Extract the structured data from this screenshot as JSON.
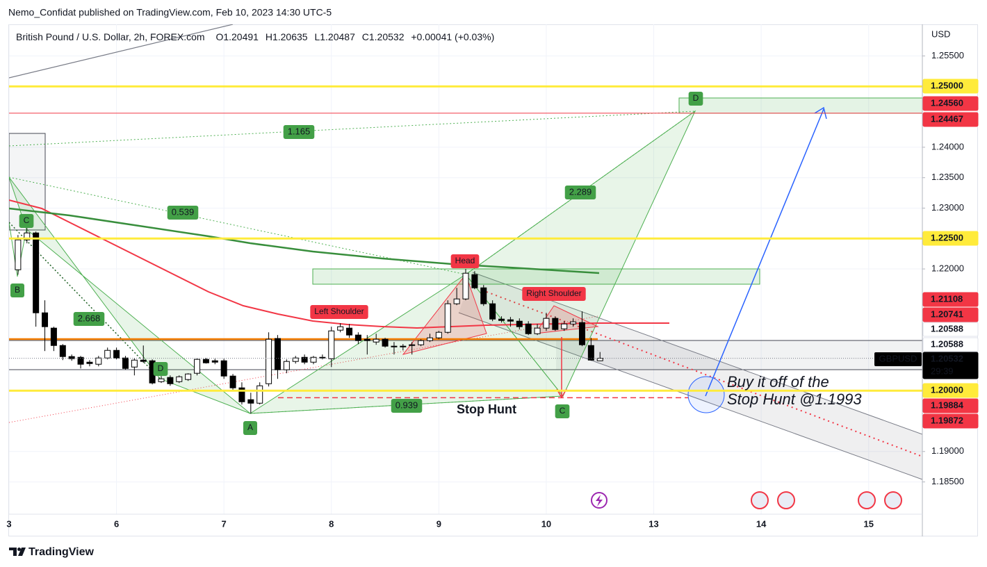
{
  "header": {
    "byline": "Nemo_Confidat published on TradingView.com, Feb 10, 2023 14:30 UTC-5",
    "brand": "TradingView"
  },
  "chart_data": {
    "type": "candlestick",
    "title": "British Pound / U.S. Dollar, 2h, FOREX.com",
    "ohlc_legend": [
      {
        "key": "O",
        "value": 1.20491
      },
      {
        "key": "H",
        "value": 1.20635
      },
      {
        "key": "L",
        "value": 1.20487
      },
      {
        "key": "C",
        "value": 1.20532
      }
    ],
    "change": "+0.00041 (+0.03%)",
    "symbol": "GBPUSD",
    "countdown": "29:39",
    "currency": "USD",
    "categories": [
      "3",
      null,
      null,
      null,
      null,
      null,
      null,
      null,
      null,
      null,
      null,
      null,
      "6",
      null,
      null,
      null,
      null,
      null,
      null,
      null,
      null,
      null,
      null,
      null,
      "7",
      null,
      null,
      null,
      null,
      null,
      null,
      null,
      null,
      null,
      null,
      null,
      "8",
      null,
      null,
      null,
      null,
      null,
      null,
      null,
      null,
      null,
      null,
      null,
      "9",
      null,
      null,
      null,
      null,
      null,
      null,
      null,
      null,
      null,
      null,
      null,
      "10",
      null,
      null,
      null,
      null,
      null,
      null,
      null,
      null,
      null,
      null,
      null,
      "13",
      null,
      null,
      null,
      null,
      null,
      null,
      null,
      null,
      null,
      null,
      null,
      "14",
      null,
      null,
      null,
      null,
      null,
      null,
      null,
      null,
      null,
      null,
      null,
      "15",
      null,
      null,
      null,
      null,
      null
    ],
    "open": [
      null,
      1.21987,
      1.22478,
      1.22592,
      1.21279,
      1.21028,
      1.20742,
      1.2056,
      1.20548,
      1.20468,
      1.20434,
      1.20537,
      1.20662,
      1.20537,
      1.20388,
      1.20502,
      1.20491,
      1.20148,
      1.20217,
      1.20148,
      1.20183,
      1.20286,
      1.20514,
      1.20491,
      1.20491,
      1.2024,
      1.20046,
      1.19852,
      1.19794,
      1.20114,
      1.20857,
      1.20343,
      1.2048,
      1.20548,
      1.20468,
      1.20548,
      1.20525,
      1.20994,
      1.21028,
      1.20914,
      1.20845,
      1.20799,
      1.20845,
      1.20731,
      1.20731,
      1.20742,
      1.20754,
      1.20822,
      1.20868,
      1.20959,
      1.21428,
      1.21507,
      1.21907,
      1.2169,
      1.21428,
      1.21176,
      1.21165,
      1.21142,
      1.21096,
      1.20936,
      1.21028,
      1.21188,
      1.21016,
      1.21096,
      1.21119,
      1.20742,
      1.20491,
      null,
      null,
      null,
      null,
      null,
      null,
      null,
      null,
      null,
      null,
      null,
      null,
      null,
      null,
      null,
      null,
      null,
      null,
      null,
      null,
      null,
      null,
      null,
      null,
      null,
      null,
      null,
      null,
      null,
      null,
      null,
      null,
      null,
      null,
      null
    ],
    "high": [
      null,
      1.22558,
      1.22672,
      1.22615,
      1.21485,
      1.21051,
      1.20765,
      1.20594,
      1.20571,
      1.20502,
      1.20571,
      1.20708,
      1.20708,
      1.20571,
      1.20537,
      1.20742,
      1.20514,
      1.2024,
      1.20251,
      1.20251,
      1.20286,
      1.20537,
      1.20537,
      1.20525,
      1.20525,
      1.20274,
      1.20137,
      1.19966,
      1.20137,
      1.20959,
      1.20914,
      1.20514,
      1.20571,
      1.20594,
      1.20571,
      1.20594,
      1.21051,
      1.21108,
      1.21096,
      1.20959,
      1.20914,
      1.20936,
      1.20868,
      1.20799,
      1.20765,
      1.20799,
      1.20845,
      1.20936,
      1.20982,
      1.21485,
      1.2169,
      1.21999,
      1.21964,
      1.21736,
      1.21485,
      1.21222,
      1.21211,
      1.21188,
      1.21142,
      1.21096,
      1.21279,
      1.21222,
      1.21142,
      1.21188,
      1.21302,
      1.20868,
      1.20635,
      null,
      null,
      null,
      null,
      null,
      null,
      null,
      null,
      null,
      null,
      null,
      null,
      null,
      null,
      null,
      null,
      null,
      null,
      null,
      null,
      null,
      null,
      null,
      null,
      null,
      null,
      null,
      null,
      null,
      null,
      null,
      null,
      null,
      null,
      null
    ],
    "low": [
      null,
      1.21907,
      1.22421,
      1.21051,
      1.20651,
      1.20651,
      1.20502,
      1.20491,
      1.20365,
      1.204,
      1.204,
      1.20514,
      1.20514,
      1.20343,
      1.20251,
      1.20457,
      1.20103,
      1.20126,
      1.2008,
      1.20126,
      1.2016,
      1.20251,
      1.20445,
      1.20434,
      1.20194,
      1.2,
      1.19772,
      1.19623,
      1.19772,
      1.20069,
      1.20194,
      1.20286,
      1.20445,
      1.20434,
      1.20434,
      1.20514,
      1.20388,
      1.20959,
      1.20868,
      1.20765,
      1.20594,
      1.20754,
      1.20708,
      1.20594,
      1.20662,
      1.20594,
      1.20731,
      1.20799,
      1.20845,
      1.20936,
      1.21405,
      1.21485,
      1.21667,
      1.21393,
      1.21142,
      1.21119,
      1.21051,
      1.21005,
      1.20914,
      1.20914,
      1.20982,
      1.20982,
      1.20982,
      1.21051,
      1.20731,
      1.20491,
      1.20487,
      null,
      null,
      null,
      null,
      null,
      null,
      null,
      null,
      null,
      null,
      null,
      null,
      null,
      null,
      null,
      null,
      null,
      null,
      null,
      null,
      null,
      null,
      null,
      null,
      null,
      null,
      null,
      null,
      null,
      null,
      null,
      null,
      null,
      null,
      null
    ],
    "close": [
      null,
      1.22478,
      1.22592,
      1.21279,
      1.21051,
      1.20742,
      1.2056,
      1.20525,
      1.20434,
      1.20445,
      1.20537,
      1.20662,
      1.20537,
      1.20365,
      1.20502,
      1.2048,
      1.20126,
      1.20194,
      1.20114,
      1.20228,
      1.20274,
      1.20514,
      1.20457,
      1.20468,
      1.2024,
      1.20046,
      1.19817,
      1.19794,
      1.2008,
      1.20845,
      1.20343,
      1.2048,
      1.20537,
      1.20468,
      1.20548,
      1.20537,
      1.20982,
      1.21051,
      1.20914,
      1.20822,
      1.20822,
      1.20845,
      1.20731,
      1.20719,
      1.20719,
      1.20754,
      1.20822,
      1.20868,
      1.20959,
      1.21428,
      1.21507,
      1.2193,
      1.2169,
      1.21428,
      1.21176,
      1.21153,
      1.21142,
      1.21051,
      1.20936,
      1.21028,
      1.21188,
      1.21005,
      1.21096,
      1.21131,
      1.20754,
      1.20502,
      1.20532,
      null,
      null,
      null,
      null,
      null,
      null,
      null,
      null,
      null,
      null,
      null,
      null,
      null,
      null,
      null,
      null,
      null,
      null,
      null,
      null,
      null,
      null,
      null,
      null,
      null,
      null,
      null,
      null,
      null,
      null,
      null,
      null,
      null,
      null,
      null
    ],
    "up_color": "#ffffff",
    "down_color": "#000000",
    "ylim": [
      1.1797,
      1.2602
    ],
    "yticks": [
      {
        "value": 1.255,
        "label": "1.25500"
      },
      {
        "value": 1.24,
        "label": "1.24000"
      },
      {
        "value": 1.235,
        "label": "1.23500"
      },
      {
        "value": 1.23,
        "label": "1.23000"
      },
      {
        "value": 1.22,
        "label": "1.22000"
      },
      {
        "value": 1.19,
        "label": "1.19000"
      },
      {
        "value": 1.185,
        "label": "1.18500"
      }
    ],
    "grid": true,
    "price_tags": [
      {
        "value": 1.25,
        "label": "1.25000",
        "color": "#ffeb3b",
        "line": "solid"
      },
      {
        "value": 1.2456,
        "label": "1.24560",
        "color": "#f23645",
        "line": "solid"
      },
      {
        "value": 1.24467,
        "label": "1.24467",
        "color": "#f23645"
      },
      {
        "value": 1.225,
        "label": "1.22500",
        "color": "#ffeb3b",
        "line": "solid"
      },
      {
        "value": 1.21108,
        "label": "1.21108",
        "color": "#f23645"
      },
      {
        "value": 1.20741,
        "label": "1.20741",
        "color": "#f23645"
      },
      {
        "value": 1.20588,
        "label": "1.20588",
        "color": "#ffffff"
      },
      {
        "value": 1.20588,
        "label": "1.20588",
        "color": "#ffffff"
      },
      {
        "value": 1.20532,
        "label": "1.20532",
        "color": "#000000",
        "line": "dotted"
      },
      {
        "value": 1.2,
        "label": "1.20000",
        "color": "#ffeb3b",
        "line": "solid"
      },
      {
        "value": 1.19884,
        "label": "1.19884",
        "color": "#f23645",
        "line": "dashed"
      },
      {
        "value": 1.19872,
        "label": "1.19872",
        "color": "#f23645"
      }
    ],
    "annotations": [
      {
        "text": "1.165",
        "color": "#43a047"
      },
      {
        "text": "0.539",
        "color": "#43a047"
      },
      {
        "text": "2.668",
        "color": "#43a047"
      },
      {
        "text": "0.939",
        "color": "#43a047"
      },
      {
        "text": "2.289",
        "color": "#43a047"
      },
      {
        "text": "A",
        "color": "#43a047"
      },
      {
        "text": "B",
        "color": "#43a047"
      },
      {
        "text": "C",
        "color": "#43a047"
      },
      {
        "text": "D",
        "color": "#43a047"
      },
      {
        "text": "D",
        "color": "#43a047"
      },
      {
        "text": "C",
        "color": "#43a047"
      },
      {
        "text": "Head",
        "color": "#f23645"
      },
      {
        "text": "Left Shoulder",
        "color": "#f23645"
      },
      {
        "text": "Right Shoulder",
        "color": "#f23645"
      },
      {
        "text": "Stop Hunt",
        "color": "#f23645"
      },
      {
        "text": "Buy it off of the",
        "color": "#1848cc"
      },
      {
        "text": "Stop Hunt @1.1993",
        "color": "#1848cc"
      }
    ]
  }
}
